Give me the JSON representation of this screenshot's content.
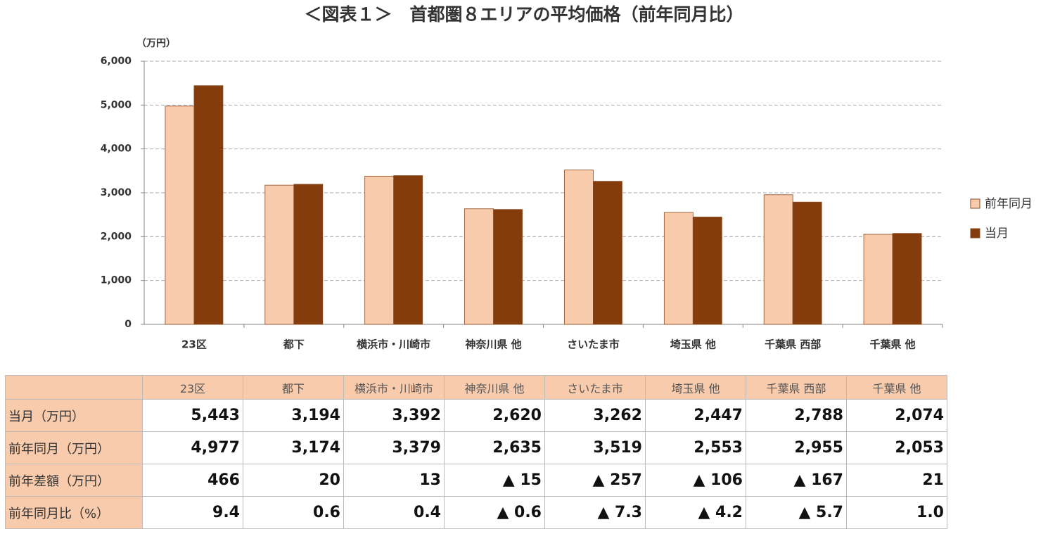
{
  "chart_data": {
    "type": "bar",
    "title": "＜図表１＞　首都圏８エリアの平均価格（前年同月比）",
    "y_label": "（万円）",
    "categories": [
      "23区",
      "都下",
      "横浜市・川崎市",
      "神奈川県 他",
      "さいたま市",
      "埼玉県 他",
      "千葉県 西部",
      "千葉県 他"
    ],
    "series": [
      {
        "name": "前年同月",
        "color": "#f8cbad",
        "values": [
          4977,
          3174,
          3379,
          2635,
          3519,
          2553,
          2955,
          2053
        ]
      },
      {
        "name": "当月",
        "color": "#843c0c",
        "values": [
          5443,
          3194,
          3392,
          2620,
          3262,
          2447,
          2788,
          2074
        ]
      }
    ],
    "ylim": [
      0,
      6000
    ],
    "yticks": [
      0,
      {
        "value": 1000,
        "label": "1,000"
      },
      {
        "value": 2000,
        "label": "2,000"
      },
      {
        "value": 3000,
        "label": "3,000"
      },
      {
        "value": 4000,
        "label": "4,000"
      },
      {
        "value": 5000,
        "label": "5,000"
      },
      {
        "value": 6000,
        "label": "6,000"
      }
    ],
    "grid": true,
    "legend": "right"
  },
  "table": {
    "rows": [
      [
        "当月（万円）",
        "5,443",
        "3,194",
        "3,392",
        "2,620",
        "3,262",
        "2,447",
        "2,788",
        "2,074"
      ],
      [
        "前年同月（万円）",
        "4,977",
        "3,174",
        "3,379",
        "2,635",
        "3,519",
        "2,553",
        "2,955",
        "2,053"
      ],
      [
        "前年差額（万円）",
        "466",
        "20",
        "13",
        "▲ 15",
        "▲ 257",
        "▲ 106",
        "▲ 167",
        "21"
      ],
      [
        "前年同月比（%）",
        "9.4",
        "0.6",
        "0.4",
        "▲ 0.6",
        "▲ 7.3",
        "▲ 4.2",
        "▲ 5.7",
        "1.0"
      ]
    ]
  }
}
